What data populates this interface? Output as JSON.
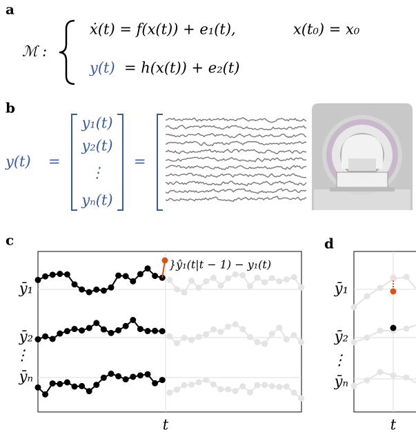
{
  "panels": {
    "a": {
      "label": "a",
      "model": "ℳ :",
      "state_equation": "ẋ(t) = f(x(t)) + e₁(t),",
      "initial_condition": "x(t₀) = x₀",
      "output_lhs": "y(t)",
      "output_rhs": "= h(x(t)) + e₂(t)"
    },
    "b": {
      "label": "b",
      "lhs": "y(t)",
      "equals_1": "=",
      "vector": [
        "y₁(t)",
        "y₂(t)",
        "⋮",
        "yₙ(t)"
      ],
      "equals_2": "="
    },
    "c": {
      "label": "c",
      "row_labels": [
        "ȳ₁",
        "ȳ₂",
        "⋮",
        "ȳₙ"
      ],
      "annotation": "}ŷ₁(t|t − 1) − y₁(t)",
      "time_label": "t"
    },
    "d": {
      "label": "d",
      "row_labels": [
        "ȳ₁",
        "ȳ₂",
        "⋮",
        "ȳₙ"
      ],
      "time_label": "t"
    }
  }
}
